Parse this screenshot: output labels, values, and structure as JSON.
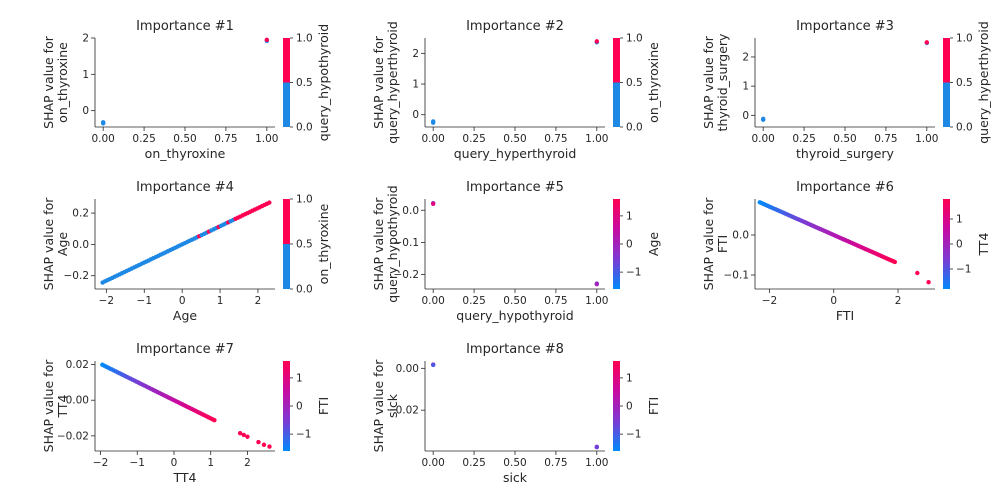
{
  "colorscales": {
    "binary": {
      "low": "#1e88e5",
      "high": "#ff0052"
    },
    "continuous": [
      "#008afb",
      "#7c3ad3",
      "#c70ba1",
      "#ff0052"
    ]
  },
  "chart_data": [
    {
      "type": "scatter",
      "title": "Importance #1",
      "xlabel": "on_thyroxine",
      "ylabel_lines": [
        "SHAP value for",
        "on_thyroxine"
      ],
      "xlim": [
        -0.05,
        1.05
      ],
      "ylim": [
        -0.45,
        2.0
      ],
      "xticks": [
        0,
        0.25,
        0.5,
        0.75,
        1
      ],
      "xtick_labels": [
        "0.00",
        "0.25",
        "0.50",
        "0.75",
        "1.00"
      ],
      "yticks": [
        0,
        1,
        2
      ],
      "ytick_labels": [
        "0",
        "1",
        "2"
      ],
      "points": [
        {
          "x": 0,
          "y": -0.32,
          "c": 0
        },
        {
          "x": 0,
          "y": -0.35,
          "c": 0
        },
        {
          "x": 0,
          "y": -0.33,
          "c": 0
        },
        {
          "x": 1,
          "y": 1.92,
          "c": 0
        },
        {
          "x": 1,
          "y": 1.95,
          "c": 1
        }
      ],
      "colorbar": {
        "label": "query_hypothyroid",
        "scale": "binary",
        "range": [
          0,
          1
        ],
        "ticks": [
          0,
          0.5,
          1
        ],
        "tick_labels": [
          "0.0",
          "0.5",
          "1.0"
        ]
      }
    },
    {
      "type": "scatter",
      "title": "Importance #2",
      "xlabel": "query_hyperthyroid",
      "ylabel_lines": [
        "SHAP value for",
        "query_hyperthyroid"
      ],
      "xlim": [
        -0.05,
        1.05
      ],
      "ylim": [
        -0.4,
        2.5
      ],
      "xticks": [
        0,
        0.25,
        0.5,
        0.75,
        1
      ],
      "xtick_labels": [
        "0.00",
        "0.25",
        "0.50",
        "0.75",
        "1.00"
      ],
      "yticks": [
        0,
        1,
        2
      ],
      "ytick_labels": [
        "0",
        "1",
        "2"
      ],
      "points": [
        {
          "x": 0,
          "y": -0.22,
          "c": 0
        },
        {
          "x": 0,
          "y": -0.26,
          "c": 0
        },
        {
          "x": 1,
          "y": 2.36,
          "c": 0
        },
        {
          "x": 1,
          "y": 2.39,
          "c": 1
        }
      ],
      "colorbar": {
        "label": "on_thyroxine",
        "scale": "binary",
        "range": [
          0,
          1
        ],
        "ticks": [
          0,
          0.5,
          1
        ],
        "tick_labels": [
          "0.0",
          "0.5",
          "1.0"
        ]
      }
    },
    {
      "type": "scatter",
      "title": "Importance #3",
      "xlabel": "thyroid_surgery",
      "ylabel_lines": [
        "SHAP value for",
        "thyroid_surgery"
      ],
      "xlim": [
        -0.05,
        1.05
      ],
      "ylim": [
        -0.4,
        2.65
      ],
      "xticks": [
        0,
        0.25,
        0.5,
        0.75,
        1
      ],
      "xtick_labels": [
        "0.00",
        "0.25",
        "0.50",
        "0.75",
        "1.00"
      ],
      "yticks": [
        0,
        1,
        2
      ],
      "ytick_labels": [
        "0",
        "1",
        "2"
      ],
      "points": [
        {
          "x": 0,
          "y": -0.12,
          "c": 0
        },
        {
          "x": 0,
          "y": -0.15,
          "c": 0
        },
        {
          "x": 1,
          "y": 2.48,
          "c": 0
        },
        {
          "x": 1,
          "y": 2.5,
          "c": 1
        }
      ],
      "colorbar": {
        "label": "query_hyperthyroid",
        "scale": "binary",
        "range": [
          0,
          1
        ],
        "ticks": [
          0,
          0.5,
          1
        ],
        "tick_labels": [
          "0.0",
          "0.5",
          "1.0"
        ]
      }
    },
    {
      "type": "scatter",
      "title": "Importance #4",
      "xlabel": "Age",
      "ylabel_lines": [
        "SHAP value for",
        "Age"
      ],
      "xlim": [
        -2.3,
        2.45
      ],
      "ylim": [
        -0.285,
        0.29
      ],
      "xticks": [
        -2,
        -1,
        0,
        1,
        2
      ],
      "xtick_labels": [
        "−2",
        "−1",
        "0",
        "1",
        "2"
      ],
      "yticks": [
        -0.2,
        0,
        0.2
      ],
      "ytick_labels": [
        "−0.2",
        "0.0",
        "0.2"
      ],
      "line": {
        "x_from": -2.1,
        "x_to": 2.3,
        "slope": 0.116,
        "intercept": 0.0,
        "count": 70,
        "high_color_above": 1.4,
        "mixed_from": 0.3
      },
      "colorbar": {
        "label": "on_thyroxine",
        "scale": "binary",
        "range": [
          0,
          1
        ],
        "ticks": [
          0,
          0.5,
          1
        ],
        "tick_labels": [
          "0.0",
          "0.5",
          "1.0"
        ]
      }
    },
    {
      "type": "scatter",
      "title": "Importance #5",
      "xlabel": "query_hypothyroid",
      "ylabel_lines": [
        "SHAP value for",
        "query_hypothyroid"
      ],
      "xlim": [
        -0.05,
        1.05
      ],
      "ylim": [
        -0.245,
        0.035
      ],
      "xticks": [
        0,
        0.25,
        0.5,
        0.75,
        1
      ],
      "xtick_labels": [
        "0.00",
        "0.25",
        "0.50",
        "0.75",
        "1.00"
      ],
      "yticks": [
        -0.2,
        -0.1,
        0
      ],
      "ytick_labels": [
        "−0.2",
        "−0.1",
        "0.0"
      ],
      "points": [
        {
          "x": 0,
          "y": 0.022,
          "c": 0.4
        },
        {
          "x": 0,
          "y": 0.02,
          "c": 0.8
        },
        {
          "x": 1,
          "y": -0.228,
          "c": 0.3
        },
        {
          "x": 1,
          "y": -0.23,
          "c": 0.5
        }
      ],
      "colorbar": {
        "label": "Age",
        "scale": "continuous",
        "range": [
          -1.6,
          1.6
        ],
        "ticks": [
          -1,
          0,
          1
        ],
        "tick_labels": [
          "−1",
          "0",
          "1"
        ]
      }
    },
    {
      "type": "scatter",
      "title": "Importance #6",
      "xlabel": "FTI",
      "ylabel_lines": [
        "SHAP value for",
        "FTI"
      ],
      "xlim": [
        -2.45,
        3.15
      ],
      "ylim": [
        -0.135,
        0.09
      ],
      "xticks": [
        -2,
        0,
        2
      ],
      "xtick_labels": [
        "−2",
        "0",
        "2"
      ],
      "yticks": [
        -0.1,
        0
      ],
      "ytick_labels": [
        "−0.1",
        "0.0"
      ],
      "line": {
        "x_from": -2.3,
        "x_to": 1.9,
        "slope": -0.0355,
        "intercept": 0.0,
        "count": 70,
        "extra": [
          {
            "x": 2.6,
            "y": -0.095
          },
          {
            "x": 2.95,
            "y": -0.118
          }
        ]
      },
      "colorbar": {
        "label": "TT4",
        "scale": "continuous",
        "range": [
          -1.8,
          1.8
        ],
        "ticks": [
          -1,
          0,
          1
        ],
        "tick_labels": [
          "−1",
          "0",
          "1"
        ]
      }
    },
    {
      "type": "scatter",
      "title": "Importance #7",
      "xlabel": "TT4",
      "ylabel_lines": [
        "SHAP value for",
        "TT4"
      ],
      "xlim": [
        -2.15,
        2.75
      ],
      "ylim": [
        -0.0285,
        0.022
      ],
      "xticks": [
        -2,
        -1,
        0,
        1,
        2
      ],
      "xtick_labels": [
        "−2",
        "−1",
        "0",
        "1",
        "2"
      ],
      "yticks": [
        -0.02,
        0,
        0.02
      ],
      "ytick_labels": [
        "−0.02",
        "0.00",
        "0.02"
      ],
      "line": {
        "x_from": -1.95,
        "x_to": 1.1,
        "slope": -0.0102,
        "intercept": 0.0,
        "count": 60,
        "extra": [
          {
            "x": 1.8,
            "y": -0.0185
          },
          {
            "x": 1.9,
            "y": -0.0195
          },
          {
            "x": 2.0,
            "y": -0.0205
          },
          {
            "x": 2.3,
            "y": -0.0235
          },
          {
            "x": 2.45,
            "y": -0.025
          },
          {
            "x": 2.6,
            "y": -0.026
          }
        ]
      },
      "colorbar": {
        "label": "FTI",
        "scale": "continuous",
        "range": [
          -1.6,
          1.6
        ],
        "ticks": [
          -1,
          0,
          1
        ],
        "tick_labels": [
          "−1",
          "0",
          "1"
        ]
      }
    },
    {
      "type": "scatter",
      "title": "Importance #8",
      "xlabel": "sick",
      "ylabel_lines": [
        "SHAP value for",
        "sick"
      ],
      "xlim": [
        -0.05,
        1.05
      ],
      "ylim": [
        -0.0395,
        0.0035
      ],
      "xticks": [
        0,
        0.25,
        0.5,
        0.75,
        1
      ],
      "xtick_labels": [
        "0.00",
        "0.25",
        "0.50",
        "0.75",
        "1.00"
      ],
      "yticks": [
        -0.02,
        0
      ],
      "ytick_labels": [
        "−0.02",
        "0.00"
      ],
      "points": [
        {
          "x": 0,
          "y": 0.0018,
          "c": 0.6
        },
        {
          "x": 0,
          "y": 0.0016,
          "c": 0.2
        },
        {
          "x": 1,
          "y": -0.0375,
          "c": 0.5
        },
        {
          "x": 1,
          "y": -0.0377,
          "c": 0.3
        }
      ],
      "colorbar": {
        "label": "FTI",
        "scale": "continuous",
        "range": [
          -1.6,
          1.6
        ],
        "ticks": [
          -1,
          0,
          1
        ],
        "tick_labels": [
          "−1",
          "0",
          "1"
        ]
      }
    }
  ]
}
